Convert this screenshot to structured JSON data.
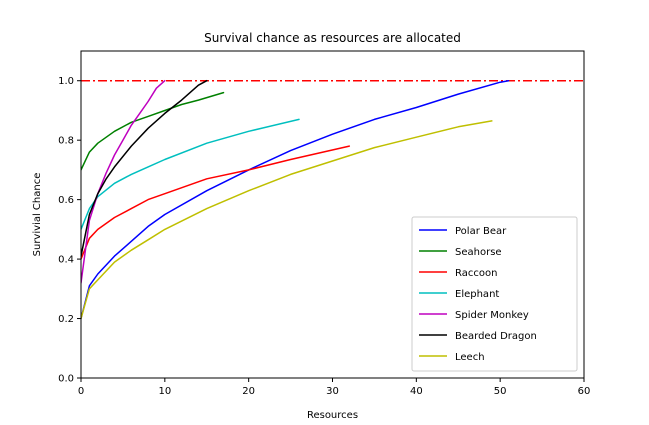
{
  "chart_data": {
    "type": "line",
    "title": "Survival chance as resources are allocated",
    "xlabel": "Resources",
    "ylabel": "Survivial Chance",
    "xlim": [
      0,
      60
    ],
    "ylim": [
      0,
      1.1
    ],
    "xticks": [
      "0",
      "10",
      "20",
      "30",
      "40",
      "50",
      "60"
    ],
    "yticks": [
      "0.0",
      "0.2",
      "0.4",
      "0.6",
      "0.8",
      "1.0"
    ],
    "grid": false,
    "legend_position": "lower-right",
    "reference_line": {
      "y": 1.0,
      "color": "#ff0000",
      "style": "dash-dot"
    },
    "series": [
      {
        "name": "Polar Bear",
        "color": "#0000ff",
        "x": [
          0,
          1,
          2,
          4,
          6,
          8,
          10,
          15,
          20,
          25,
          30,
          35,
          40,
          45,
          50,
          51
        ],
        "y": [
          0.2,
          0.31,
          0.35,
          0.41,
          0.46,
          0.51,
          0.55,
          0.63,
          0.7,
          0.765,
          0.82,
          0.87,
          0.91,
          0.955,
          0.995,
          1.0
        ]
      },
      {
        "name": "Seahorse",
        "color": "#008000",
        "x": [
          0,
          1,
          2,
          4,
          6,
          8,
          10,
          12,
          14,
          17
        ],
        "y": [
          0.7,
          0.76,
          0.79,
          0.83,
          0.86,
          0.88,
          0.9,
          0.92,
          0.935,
          0.96
        ]
      },
      {
        "name": "Raccoon",
        "color": "#ff0000",
        "x": [
          0,
          1,
          2,
          4,
          6,
          8,
          10,
          15,
          20,
          25,
          32
        ],
        "y": [
          0.4,
          0.47,
          0.5,
          0.54,
          0.57,
          0.6,
          0.62,
          0.67,
          0.7,
          0.735,
          0.78
        ]
      },
      {
        "name": "Elephant",
        "color": "#00bfbf",
        "x": [
          0,
          1,
          2,
          4,
          6,
          8,
          10,
          15,
          20,
          26
        ],
        "y": [
          0.5,
          0.57,
          0.61,
          0.655,
          0.685,
          0.71,
          0.735,
          0.79,
          0.83,
          0.87
        ]
      },
      {
        "name": "Spider Monkey",
        "color": "#bf00bf",
        "x": [
          0,
          1,
          2,
          3,
          4,
          5,
          6,
          7,
          8,
          9,
          10
        ],
        "y": [
          0.32,
          0.53,
          0.62,
          0.69,
          0.75,
          0.8,
          0.85,
          0.89,
          0.93,
          0.975,
          1.0
        ]
      },
      {
        "name": "Bearded Dragon",
        "color": "#000000",
        "x": [
          0,
          1,
          2,
          3,
          4,
          6,
          8,
          10,
          12,
          14,
          15
        ],
        "y": [
          0.41,
          0.55,
          0.62,
          0.67,
          0.71,
          0.78,
          0.84,
          0.89,
          0.935,
          0.985,
          1.0
        ]
      },
      {
        "name": "Leech",
        "color": "#bfbf00",
        "x": [
          0,
          1,
          2,
          4,
          6,
          8,
          10,
          15,
          20,
          25,
          30,
          35,
          40,
          45,
          49
        ],
        "y": [
          0.2,
          0.3,
          0.33,
          0.39,
          0.43,
          0.465,
          0.5,
          0.57,
          0.63,
          0.685,
          0.73,
          0.775,
          0.81,
          0.845,
          0.865
        ]
      }
    ]
  }
}
